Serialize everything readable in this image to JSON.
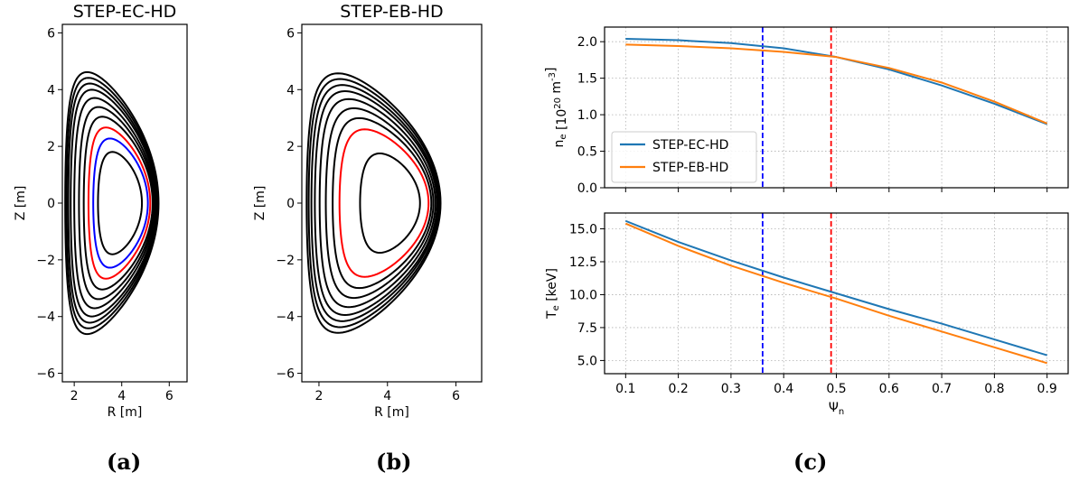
{
  "chart_data": [
    {
      "type": "line",
      "id": "a",
      "title": "STEP-EC-HD",
      "xlabel": "R [m]",
      "ylabel": "Z [m]",
      "xlim": [
        1.5,
        6.75
      ],
      "ylim": [
        -6.3,
        6.3
      ],
      "xticks": [
        2,
        4,
        6
      ],
      "yticks": [
        -6,
        -4,
        -2,
        0,
        2,
        4,
        6
      ],
      "series": [
        {
          "color": "#000000",
          "surface": {
            "r_inner": 3.0,
            "r_outer": 4.85,
            "kappa": 1.95,
            "delta": 0.35
          }
        },
        {
          "color": "#0000ff",
          "surface": {
            "r_inner": 2.8,
            "r_outer": 5.1,
            "kappa": 1.98,
            "delta": 0.4
          }
        },
        {
          "color": "#ff0000",
          "surface": {
            "r_inner": 2.6,
            "r_outer": 5.2,
            "kappa": 2.05,
            "delta": 0.45
          }
        },
        {
          "color": "#000000",
          "surface": {
            "r_inner": 2.4,
            "r_outer": 5.3,
            "kappa": 2.1,
            "delta": 0.48
          }
        },
        {
          "color": "#000000",
          "surface": {
            "r_inner": 2.2,
            "r_outer": 5.35,
            "kappa": 2.15,
            "delta": 0.5
          }
        },
        {
          "color": "#000000",
          "surface": {
            "r_inner": 2.0,
            "r_outer": 5.4,
            "kappa": 2.18,
            "delta": 0.52
          }
        },
        {
          "color": "#000000",
          "surface": {
            "r_inner": 1.85,
            "r_outer": 5.45,
            "kappa": 2.22,
            "delta": 0.53
          }
        },
        {
          "color": "#000000",
          "surface": {
            "r_inner": 1.75,
            "r_outer": 5.48,
            "kappa": 2.26,
            "delta": 0.54
          }
        },
        {
          "color": "#000000",
          "surface": {
            "r_inner": 1.68,
            "r_outer": 5.52,
            "kappa": 2.3,
            "delta": 0.55
          }
        },
        {
          "color": "#000000",
          "surface": {
            "r_inner": 1.62,
            "r_outer": 5.55,
            "kappa": 2.35,
            "delta": 0.56
          }
        }
      ]
    },
    {
      "type": "line",
      "id": "b",
      "title": "STEP-EB-HD",
      "xlabel": "R [m]",
      "ylabel": "Z [m]",
      "xlim": [
        1.5,
        6.75
      ],
      "ylim": [
        -6.3,
        6.3
      ],
      "xticks": [
        2,
        4,
        6
      ],
      "yticks": [
        -6,
        -4,
        -2,
        0,
        2,
        4,
        6
      ],
      "series": [
        {
          "color": "#000000",
          "surface": {
            "r_inner": 3.2,
            "r_outer": 4.95,
            "kappa": 2.0,
            "delta": 0.35
          }
        },
        {
          "color": "#ff0000",
          "surface": {
            "r_inner": 2.6,
            "r_outer": 5.2,
            "kappa": 2.0,
            "delta": 0.45
          }
        },
        {
          "color": "#000000",
          "surface": {
            "r_inner": 2.4,
            "r_outer": 5.28,
            "kappa": 2.08,
            "delta": 0.48
          }
        },
        {
          "color": "#000000",
          "surface": {
            "r_inner": 2.2,
            "r_outer": 5.34,
            "kappa": 2.13,
            "delta": 0.5
          }
        },
        {
          "color": "#000000",
          "surface": {
            "r_inner": 2.02,
            "r_outer": 5.4,
            "kappa": 2.17,
            "delta": 0.52
          }
        },
        {
          "color": "#000000",
          "surface": {
            "r_inner": 1.88,
            "r_outer": 5.45,
            "kappa": 2.21,
            "delta": 0.53
          }
        },
        {
          "color": "#000000",
          "surface": {
            "r_inner": 1.78,
            "r_outer": 5.48,
            "kappa": 2.25,
            "delta": 0.54
          }
        },
        {
          "color": "#000000",
          "surface": {
            "r_inner": 1.7,
            "r_outer": 5.52,
            "kappa": 2.29,
            "delta": 0.55
          }
        },
        {
          "color": "#000000",
          "surface": {
            "r_inner": 1.64,
            "r_outer": 5.55,
            "kappa": 2.34,
            "delta": 0.56
          }
        }
      ]
    },
    {
      "type": "line",
      "id": "c-top",
      "ylabel": "n_e [10^20 m^-3]",
      "xlim": [
        0.06,
        0.94
      ],
      "ylim": [
        0.0,
        2.2
      ],
      "xticks": [
        0.1,
        0.2,
        0.3,
        0.4,
        0.5,
        0.6,
        0.7,
        0.8,
        0.9
      ],
      "yticks": [
        0.0,
        0.5,
        1.0,
        1.5,
        2.0
      ],
      "grid": true,
      "legend": "center-left",
      "x": [
        0.1,
        0.2,
        0.3,
        0.4,
        0.5,
        0.6,
        0.7,
        0.8,
        0.9
      ],
      "series": [
        {
          "name": "STEP-EC-HD",
          "color": "#1f77b4",
          "values": [
            2.04,
            2.02,
            1.98,
            1.91,
            1.79,
            1.62,
            1.4,
            1.15,
            0.87
          ]
        },
        {
          "name": "STEP-EB-HD",
          "color": "#ff7f0e",
          "values": [
            1.96,
            1.94,
            1.91,
            1.86,
            1.79,
            1.64,
            1.44,
            1.18,
            0.88
          ]
        }
      ],
      "vlines": [
        {
          "x": 0.36,
          "color": "#0000ff",
          "style": "dashed"
        },
        {
          "x": 0.49,
          "color": "#ff0000",
          "style": "dashed"
        }
      ]
    },
    {
      "type": "line",
      "id": "c-bottom",
      "xlabel": "Ψ_n",
      "ylabel": "T_e [keV]",
      "xlim": [
        0.06,
        0.94
      ],
      "ylim": [
        4.0,
        16.2
      ],
      "xticks": [
        0.1,
        0.2,
        0.3,
        0.4,
        0.5,
        0.6,
        0.7,
        0.8,
        0.9
      ],
      "xticklabels": [
        "0.1",
        "0.2",
        "0.3",
        "0.4",
        "0.5",
        "0.6",
        "0.7",
        "0.8",
        "0.9"
      ],
      "yticks": [
        5.0,
        7.5,
        10.0,
        12.5,
        15.0
      ],
      "yticklabels": [
        "5.0",
        "7.5",
        "10.0",
        "12.5",
        "15.0"
      ],
      "grid": true,
      "x": [
        0.1,
        0.2,
        0.3,
        0.4,
        0.5,
        0.6,
        0.7,
        0.8,
        0.9
      ],
      "series": [
        {
          "name": "STEP-EC-HD",
          "color": "#1f77b4",
          "values": [
            15.6,
            14.0,
            12.6,
            11.3,
            10.1,
            8.9,
            7.8,
            6.6,
            5.4
          ]
        },
        {
          "name": "STEP-EB-HD",
          "color": "#ff7f0e",
          "values": [
            15.4,
            13.7,
            12.2,
            10.9,
            9.7,
            8.4,
            7.2,
            6.0,
            4.8
          ]
        }
      ],
      "vlines": [
        {
          "x": 0.36,
          "color": "#0000ff",
          "style": "dashed"
        },
        {
          "x": 0.49,
          "color": "#ff0000",
          "style": "dashed"
        }
      ]
    }
  ],
  "panel_labels": {
    "a": "(a)",
    "b": "(b)",
    "c": "(c)"
  }
}
